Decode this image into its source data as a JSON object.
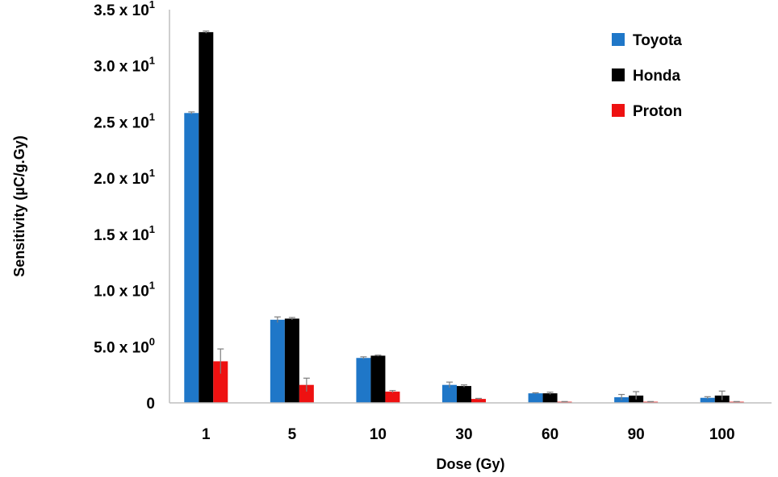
{
  "chart_data": {
    "type": "bar",
    "xlabel": "Dose (Gy)",
    "ylabel": "Sensitivity (µC/g.Gy)",
    "ylim": [
      0,
      35
    ],
    "yticks": [
      {
        "value": 0,
        "mantissa": "0",
        "exp": ""
      },
      {
        "value": 5,
        "mantissa": "5.0 x 10",
        "exp": "0"
      },
      {
        "value": 10,
        "mantissa": "1.0 x 10",
        "exp": "1"
      },
      {
        "value": 15,
        "mantissa": "1.5 x 10",
        "exp": "1"
      },
      {
        "value": 20,
        "mantissa": "2.0 x 10",
        "exp": "1"
      },
      {
        "value": 25,
        "mantissa": "2.5 x 10",
        "exp": "1"
      },
      {
        "value": 30,
        "mantissa": "3.0 x 10",
        "exp": "1"
      },
      {
        "value": 35,
        "mantissa": "3.5 x 10",
        "exp": "1"
      }
    ],
    "categories": [
      "1",
      "5",
      "10",
      "30",
      "60",
      "90",
      "100"
    ],
    "legend_position": "top-right",
    "grid": false,
    "series": [
      {
        "name": "Toyota",
        "color": "#1f77c8",
        "values": [
          25.8,
          7.4,
          4.0,
          1.6,
          0.85,
          0.5,
          0.45
        ],
        "errors": [
          0.1,
          0.25,
          0.1,
          0.25,
          0.05,
          0.25,
          0.1
        ]
      },
      {
        "name": "Honda",
        "color": "#000000",
        "values": [
          33.0,
          7.5,
          4.2,
          1.5,
          0.85,
          0.65,
          0.65
        ],
        "errors": [
          0.1,
          0.1,
          0.05,
          0.1,
          0.1,
          0.35,
          0.4
        ]
      },
      {
        "name": "Proton",
        "color": "#ee1111",
        "values": [
          3.7,
          1.6,
          1.0,
          0.35,
          0.1,
          0.1,
          0.1
        ],
        "errors": [
          1.1,
          0.6,
          0.1,
          0.05,
          0.02,
          0.02,
          0.02
        ]
      }
    ]
  }
}
